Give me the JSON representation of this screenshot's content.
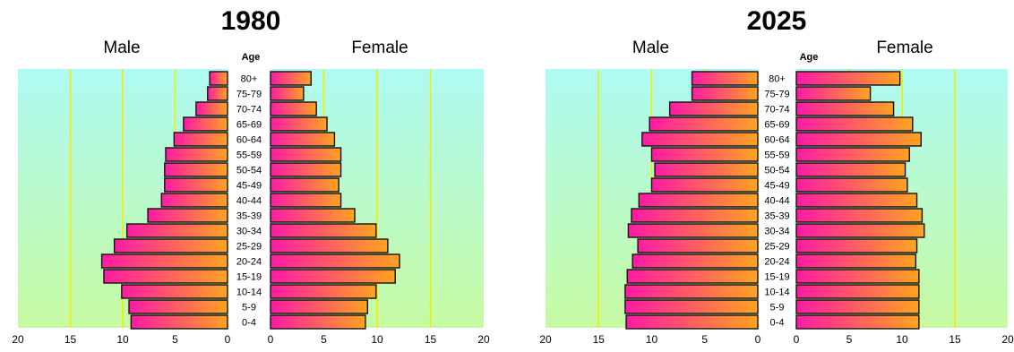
{
  "colors": {
    "bg_top": "#aefaf4",
    "bg_bottom": "#c6faa2",
    "grid": "#f2ee00",
    "bar_left": "#ff1aa5",
    "bar_right": "#ffa31f",
    "bar_stroke": "#111111"
  },
  "chart_data": [
    {
      "type": "bar",
      "orientation": "horizontal",
      "subtype": "population-pyramid",
      "title": "1980",
      "left_label": "Male",
      "right_label": "Female",
      "age_header": "Age",
      "categories": [
        "80+",
        "75-79",
        "70-74",
        "65-69",
        "60-64",
        "55-59",
        "50-54",
        "45-49",
        "40-44",
        "35-39",
        "30-34",
        "25-29",
        "20-24",
        "15-19",
        "10-14",
        "5-9",
        "0-4"
      ],
      "series": [
        {
          "name": "Male",
          "values": [
            1.7,
            1.9,
            3.0,
            4.2,
            5.1,
            5.9,
            6.0,
            6.0,
            6.3,
            7.6,
            9.6,
            10.8,
            12.0,
            11.8,
            10.1,
            9.4,
            9.2
          ]
        },
        {
          "name": "Female",
          "values": [
            3.8,
            3.1,
            4.3,
            5.3,
            6.0,
            6.6,
            6.6,
            6.4,
            6.6,
            7.9,
            9.9,
            11.0,
            12.1,
            11.7,
            9.9,
            9.1,
            8.9
          ]
        }
      ],
      "xlim": [
        0,
        20
      ],
      "xticks": [
        "20",
        "15",
        "10",
        "5",
        "0",
        "0",
        "5",
        "10",
        "15",
        "20"
      ],
      "grid_values": [
        5,
        10,
        15
      ],
      "grid": true
    },
    {
      "type": "bar",
      "orientation": "horizontal",
      "subtype": "population-pyramid",
      "title": "2025",
      "left_label": "Male",
      "right_label": "Female",
      "age_header": "Age",
      "categories": [
        "80+",
        "75-79",
        "70-74",
        "65-69",
        "60-64",
        "55-59",
        "50-54",
        "45-49",
        "40-44",
        "35-39",
        "30-34",
        "25-29",
        "20-24",
        "15-19",
        "10-14",
        "5-9",
        "0-4"
      ],
      "series": [
        {
          "name": "Male",
          "values": [
            6.2,
            6.2,
            8.3,
            10.2,
            10.9,
            10.0,
            9.7,
            10.0,
            11.2,
            11.9,
            12.2,
            11.3,
            11.8,
            12.3,
            12.5,
            12.5,
            12.4
          ]
        },
        {
          "name": "Female",
          "values": [
            9.8,
            7.0,
            9.2,
            11.0,
            11.8,
            10.7,
            10.3,
            10.5,
            11.4,
            11.9,
            12.1,
            11.4,
            11.3,
            11.6,
            11.6,
            11.6,
            11.6
          ]
        }
      ],
      "xlim": [
        0,
        20
      ],
      "xticks": [
        "20",
        "15",
        "10",
        "5",
        "0",
        "0",
        "5",
        "10",
        "15",
        "20"
      ],
      "grid_values": [
        5,
        10,
        15
      ],
      "grid": true
    }
  ]
}
